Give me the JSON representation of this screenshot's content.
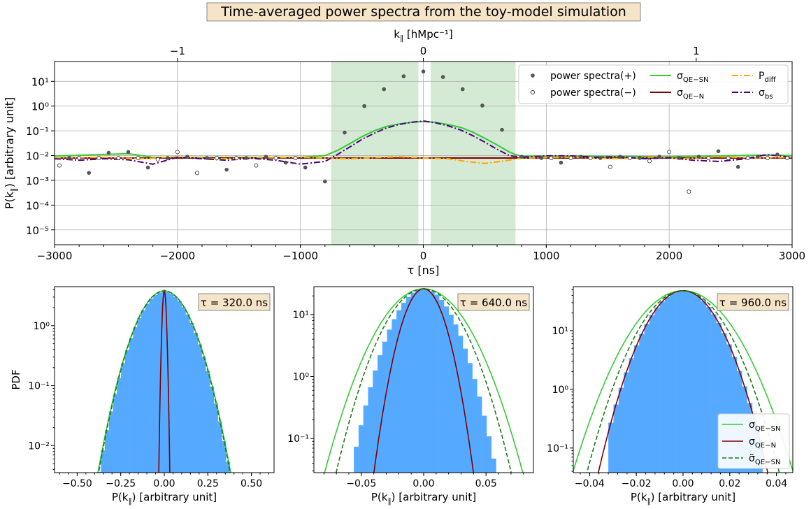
{
  "figure": {
    "title": "Time-averaged power spectra from the toy-model simulation",
    "colors": {
      "plus": "#555555",
      "qe_sn": "#33cc33",
      "qe_n": "#800000",
      "diff": "#ffa500",
      "bs": "#4b0082",
      "hist": "#55aaff",
      "qe_sn_tilde": "#1a7a1a",
      "shade": "#d4ead4",
      "annot_bg": "#f5e4c8"
    }
  },
  "chart_data": [
    {
      "type": "scatter",
      "xlabel": "τ [ns]",
      "ylabel": "P(k∥) [arbitrary unit]",
      "top_xlabel": "k∥ [hMpc⁻¹]",
      "xlim": [
        -3000,
        3000
      ],
      "ylim_log10": [
        -5.6,
        1.8
      ],
      "yscale": "log",
      "grid": true,
      "x_ticks": [
        {
          "v": -3000,
          "label": "−3000"
        },
        {
          "v": -2000,
          "label": "−2000"
        },
        {
          "v": -1000,
          "label": "−1000"
        },
        {
          "v": 0,
          "label": "0"
        },
        {
          "v": 1000,
          "label": "1000"
        },
        {
          "v": 2000,
          "label": "2000"
        },
        {
          "v": 3000,
          "label": "3000"
        }
      ],
      "top_ticks": [
        {
          "tau": -2000,
          "label": "−1"
        },
        {
          "tau": 0,
          "label": "0"
        },
        {
          "tau": 2220,
          "label": "1"
        }
      ],
      "y_tick_labels": [
        "10⁻⁵",
        "10⁻⁴",
        "10⁻³",
        "10⁻²",
        "10⁻¹",
        "10⁰",
        "10¹"
      ],
      "y_tick_exps": [
        -5,
        -4,
        -3,
        -2,
        -1,
        0,
        1
      ],
      "shaded_ranges": [
        [
          -750,
          -40
        ],
        [
          60,
          750
        ]
      ],
      "legend": {
        "placement": "upper right",
        "entries": [
          {
            "key": "plus",
            "label": "power spectra(+)",
            "style": "dot-filled"
          },
          {
            "key": "minus",
            "label": "power spectra(−)",
            "style": "dot-open"
          },
          {
            "key": "qe_sn",
            "label": "σQE−SN",
            "style": "solid"
          },
          {
            "key": "qe_n",
            "label": "σQE−N",
            "style": "solid"
          },
          {
            "key": "diff",
            "label": "Pdiff",
            "style": "dashdot"
          },
          {
            "key": "bs",
            "label": "σbs",
            "style": "dashdot"
          }
        ]
      },
      "series": [
        {
          "key": "plus",
          "name": "power spectra(+)",
          "kind": "points",
          "x": [
            -2880,
            -2720,
            -2560,
            -2400,
            -2240,
            -2080,
            -1920,
            -1760,
            -1600,
            -1440,
            -1280,
            -1120,
            -960,
            -800,
            -640,
            -480,
            -320,
            -160,
            0,
            160,
            320,
            480,
            640,
            800,
            960,
            1120,
            1280,
            1440,
            1600,
            1760,
            1920,
            2080,
            2240,
            2400,
            2560,
            2720,
            2880
          ],
          "y": [
            0.008,
            0.002,
            0.013,
            0.014,
            0.0033,
            0.008,
            0.009,
            0.008,
            0.0027,
            0.008,
            0.009,
            0.0052,
            0.0033,
            0.0009,
            0.085,
            1.0,
            4.8,
            16,
            25,
            15,
            4.8,
            1.05,
            0.11,
            0.009,
            0.008,
            0.0052,
            0.009,
            0.008,
            0.009,
            0.008,
            0.009,
            0.008,
            0.009,
            0.015,
            0.0035,
            0.009,
            0.011
          ]
        },
        {
          "key": "minus",
          "name": "power spectra(−)",
          "kind": "points",
          "x": [
            -2960,
            -2800,
            -2640,
            -2480,
            -2320,
            -2160,
            -2000,
            -1840,
            -1680,
            -1520,
            -1360,
            -1200,
            -1040,
            1040,
            1200,
            1360,
            1520,
            1680,
            1840,
            2000,
            2160,
            2320,
            2480,
            2640,
            2800,
            2960
          ],
          "y": [
            0.004,
            0.008,
            0.008,
            0.008,
            0.008,
            0.007,
            0.014,
            0.002,
            0.008,
            0.008,
            0.004,
            0.008,
            0.008,
            0.008,
            0.008,
            0.008,
            0.0035,
            0.008,
            0.006,
            0.014,
            0.00035,
            0.008,
            0.008,
            0.008,
            0.008,
            0.008
          ]
        },
        {
          "key": "qe_sn",
          "name": "σQE−SN",
          "kind": "line",
          "x": [
            -3000,
            -2400,
            -2200,
            -1800,
            -1000,
            -800,
            -700,
            -600,
            -500,
            -400,
            -300,
            -200,
            -100,
            0,
            100,
            200,
            300,
            400,
            500,
            600,
            700,
            750,
            800,
            1200,
            2000,
            2800,
            3000
          ],
          "y": [
            0.0095,
            0.012,
            0.0085,
            0.0085,
            0.0085,
            0.01,
            0.016,
            0.03,
            0.058,
            0.1,
            0.15,
            0.19,
            0.22,
            0.24,
            0.22,
            0.18,
            0.14,
            0.09,
            0.05,
            0.027,
            0.014,
            0.011,
            0.0095,
            0.0095,
            0.009,
            0.0105,
            0.01
          ]
        },
        {
          "key": "qe_n",
          "name": "σQE−N",
          "kind": "line",
          "x": [
            -3000,
            3000
          ],
          "y": [
            0.008,
            0.008
          ]
        },
        {
          "key": "diff",
          "name": "Pdiff",
          "kind": "line",
          "x": [
            -3000,
            -2600,
            -2300,
            -2000,
            -1700,
            -1400,
            -1000,
            -600,
            -200,
            0,
            200,
            350,
            500,
            650,
            800,
            1200,
            1600,
            1900,
            2100,
            2400,
            2700,
            3000
          ],
          "y": [
            0.008,
            0.0085,
            0.0075,
            0.009,
            0.0075,
            0.008,
            0.0085,
            0.0075,
            0.009,
            0.008,
            0.0075,
            0.0058,
            0.0048,
            0.006,
            0.008,
            0.0085,
            0.0075,
            0.0088,
            0.0075,
            0.009,
            0.008,
            0.0085
          ]
        },
        {
          "key": "bs",
          "name": "σbs",
          "kind": "line",
          "x": [
            -3000,
            -2800,
            -2600,
            -2400,
            -2200,
            -2000,
            -1800,
            -1600,
            -1400,
            -1200,
            -1000,
            -800,
            -700,
            -600,
            -500,
            -400,
            -300,
            -200,
            -100,
            0,
            100,
            200,
            300,
            400,
            500,
            600,
            700,
            800,
            1000,
            1200,
            1400,
            1600,
            1800,
            2000,
            2200,
            2400,
            2600,
            2800,
            3000
          ],
          "y": [
            0.0075,
            0.0065,
            0.0075,
            0.0068,
            0.0045,
            0.0085,
            0.0075,
            0.0065,
            0.0078,
            0.0065,
            0.0045,
            0.0058,
            0.011,
            0.022,
            0.045,
            0.08,
            0.13,
            0.18,
            0.22,
            0.25,
            0.21,
            0.16,
            0.11,
            0.065,
            0.035,
            0.018,
            0.01,
            0.0085,
            0.0098,
            0.0098,
            0.0085,
            0.009,
            0.0075,
            0.0082,
            0.0065,
            0.0058,
            0.0072,
            0.011,
            0.0085
          ]
        }
      ]
    },
    {
      "type": "histogram",
      "annotation": "τ = 320.0 ns",
      "xlabel": "P(k∥) [arbitrary unit]",
      "ylabel": "PDF",
      "xlim": [
        -0.63,
        0.63
      ],
      "ylim_log10": [
        -2.45,
        0.65
      ],
      "x_ticks": [
        {
          "v": -0.5,
          "label": "−0.50"
        },
        {
          "v": -0.25,
          "label": "−0.25"
        },
        {
          "v": 0,
          "label": "0.00"
        },
        {
          "v": 0.25,
          "label": "0.25"
        },
        {
          "v": 0.5,
          "label": "0.50"
        }
      ],
      "y_ticks": [
        {
          "exp": -2,
          "label": "10⁻²"
        },
        {
          "exp": -1,
          "label": "10⁻¹"
        },
        {
          "exp": 0,
          "label": "10⁰"
        }
      ],
      "hist_peak": 3.7,
      "hist_sigma": 0.101,
      "hist_range": [
        -0.48,
        0.4
      ],
      "hist_bins": 38,
      "curves": [
        {
          "key": "qe_sn",
          "peak": 3.8,
          "sigma": 0.102,
          "style": "solid"
        },
        {
          "key": "qe_n",
          "peak": 3.8,
          "sigma": 0.0085,
          "style": "solid"
        },
        {
          "key": "qe_sn_tilde",
          "peak": 3.8,
          "sigma": 0.101,
          "style": "dashed"
        }
      ]
    },
    {
      "type": "histogram",
      "annotation": "τ = 640.0 ns",
      "xlabel": "P(k∥) [arbitrary unit]",
      "ylabel": "",
      "xlim": [
        -0.088,
        0.088
      ],
      "ylim_log10": [
        -1.55,
        1.45
      ],
      "x_ticks": [
        {
          "v": -0.05,
          "label": "−0.05"
        },
        {
          "v": 0,
          "label": "0.00"
        },
        {
          "v": 0.05,
          "label": "0.05"
        }
      ],
      "y_ticks": [
        {
          "exp": -1,
          "label": "10⁻¹"
        },
        {
          "exp": 0,
          "label": "10⁰"
        },
        {
          "exp": 1,
          "label": "10¹"
        }
      ],
      "hist_peak": 26,
      "hist_sigma": 0.0158,
      "hist_range": [
        -0.056,
        0.058
      ],
      "hist_bins": 30,
      "curves": [
        {
          "key": "qe_sn",
          "peak": 26,
          "sigma": 0.0215,
          "style": "solid"
        },
        {
          "key": "qe_n",
          "peak": 26,
          "sigma": 0.0108,
          "style": "solid"
        },
        {
          "key": "qe_sn_tilde",
          "peak": 26,
          "sigma": 0.019,
          "style": "dashed"
        }
      ]
    },
    {
      "type": "histogram",
      "annotation": "τ = 960.0 ns",
      "xlabel": "P(k∥) [arbitrary unit]",
      "ylabel": "",
      "xlim": [
        -0.047,
        0.047
      ],
      "ylim_log10": [
        -1.42,
        1.75
      ],
      "x_ticks": [
        {
          "v": -0.04,
          "label": "−0.04"
        },
        {
          "v": -0.02,
          "label": "−0.02"
        },
        {
          "v": 0,
          "label": "0.00"
        },
        {
          "v": 0.02,
          "label": "0.02"
        },
        {
          "v": 0.04,
          "label": "0.04"
        }
      ],
      "y_ticks": [
        {
          "exp": -1,
          "label": "10⁻¹"
        },
        {
          "exp": 0,
          "label": "10⁰"
        },
        {
          "exp": 1,
          "label": "10¹"
        }
      ],
      "hist_peak": 48,
      "hist_sigma": 0.0096,
      "hist_range": [
        -0.032,
        0.034
      ],
      "hist_bins": 30,
      "curves": [
        {
          "key": "qe_sn",
          "peak": 48,
          "sigma": 0.0125,
          "style": "solid"
        },
        {
          "key": "qe_n",
          "peak": 48,
          "sigma": 0.0096,
          "style": "solid"
        },
        {
          "key": "qe_sn_tilde",
          "peak": 48,
          "sigma": 0.0109,
          "style": "dashed"
        }
      ],
      "legend": {
        "placement": "lower right",
        "entries": [
          {
            "key": "qe_sn",
            "label": "σQE−SN",
            "style": "solid"
          },
          {
            "key": "qe_n",
            "label": "σQE−N",
            "style": "solid"
          },
          {
            "key": "qe_sn_tilde",
            "label": "σ̃QE−SN",
            "style": "dashed"
          }
        ]
      }
    }
  ]
}
